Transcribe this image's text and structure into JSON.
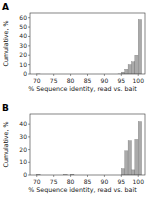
{
  "chart_data": [
    {
      "type": "histogram",
      "title": "A",
      "bins": [
        70,
        71,
        72,
        73,
        74,
        75,
        76,
        77,
        78,
        79,
        80,
        81,
        82,
        83,
        84,
        85,
        86,
        87,
        88,
        89,
        90,
        91,
        92,
        93,
        94,
        95,
        96,
        97,
        98,
        99,
        100,
        101
      ],
      "counts": [
        0.1,
        0,
        0,
        0,
        0,
        0,
        0,
        0,
        0,
        0,
        0,
        0,
        0,
        0,
        0,
        0,
        0,
        0,
        0,
        0,
        0,
        0,
        0,
        0,
        0.1,
        2,
        5,
        10,
        13,
        20,
        58
      ],
      "color": "#aaaaaa",
      "xlabel": "% Sequence identity, read vs. bait",
      "ylabel": "Cumulative, %",
      "xlim": [
        68,
        102
      ],
      "xticks": [
        70,
        75,
        80,
        85,
        90,
        95,
        100
      ],
      "ylim": [
        0,
        65
      ],
      "yticks": [
        0,
        10,
        20,
        30,
        40,
        50,
        60
      ]
    },
    {
      "type": "histogram",
      "title": "B",
      "bins": [
        70,
        71,
        72,
        73,
        74,
        75,
        76,
        77,
        78,
        79,
        80,
        81,
        82,
        83,
        84,
        85,
        86,
        87,
        88,
        89,
        90,
        91,
        92,
        93,
        94,
        95,
        96,
        97,
        98,
        99,
        100,
        101
      ],
      "counts": [
        0.5,
        0,
        0,
        0,
        0,
        0,
        0,
        0,
        0.3,
        0,
        0.5,
        0,
        0,
        0,
        0,
        0,
        0,
        0,
        0,
        0,
        0,
        0,
        0,
        0,
        0,
        5,
        19,
        27,
        4,
        28,
        42
      ],
      "color": "#aaaaaa",
      "xlabel": "% Sequence identity, read vs. bait",
      "ylabel": "Cumulative, %",
      "xlim": [
        68,
        102
      ],
      "xticks": [
        70,
        75,
        80,
        85,
        90,
        95,
        100
      ],
      "ylim": [
        0,
        48
      ],
      "yticks": [
        0,
        10,
        20,
        30,
        40
      ]
    }
  ]
}
